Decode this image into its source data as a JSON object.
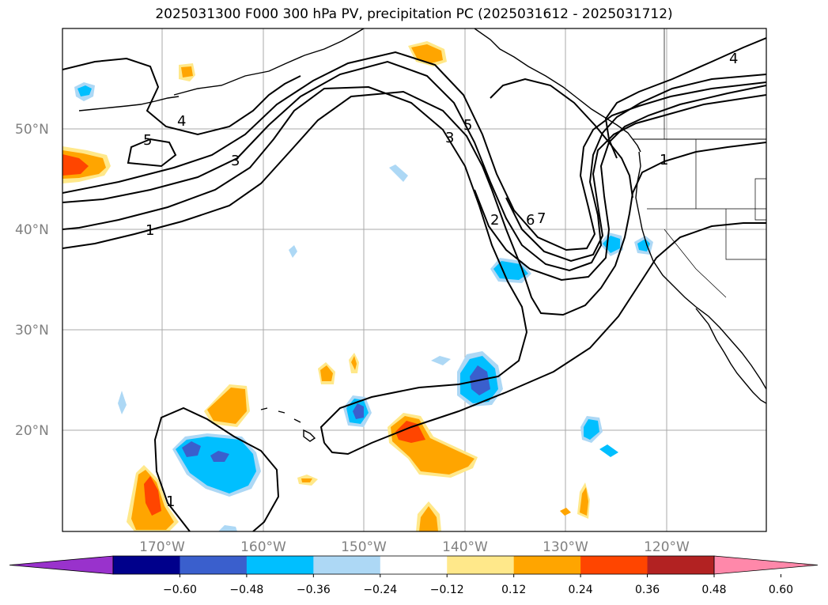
{
  "title": "2025031300 F000 300 hPa PV, precipitation PC (2025031612 - 2025031712)",
  "map": {
    "lat_labels": [
      "50°N",
      "40°N",
      "30°N",
      "20°N"
    ],
    "lon_labels": [
      "170°W",
      "160°W",
      "150°W",
      "140°W",
      "130°W",
      "120°W"
    ],
    "pv_contour_labels": [
      "1",
      "3",
      "5",
      "4",
      "5",
      "3",
      "2",
      "6",
      "7",
      "1",
      "4",
      "1"
    ],
    "gridline_color": "#aaaaaa"
  },
  "colorbar": {
    "ticks": [
      "−0.60",
      "−0.48",
      "−0.36",
      "−0.24",
      "−0.12",
      "0.12",
      "0.24",
      "0.36",
      "0.48",
      "0.60"
    ],
    "colors": [
      "#9932cc",
      "#00008b",
      "#3a5fcd",
      "#00bfff",
      "#add8f5",
      "#ffffff",
      "#ffe88a",
      "#ffa500",
      "#ff4500",
      "#b22222",
      "#ff88aa"
    ]
  }
}
